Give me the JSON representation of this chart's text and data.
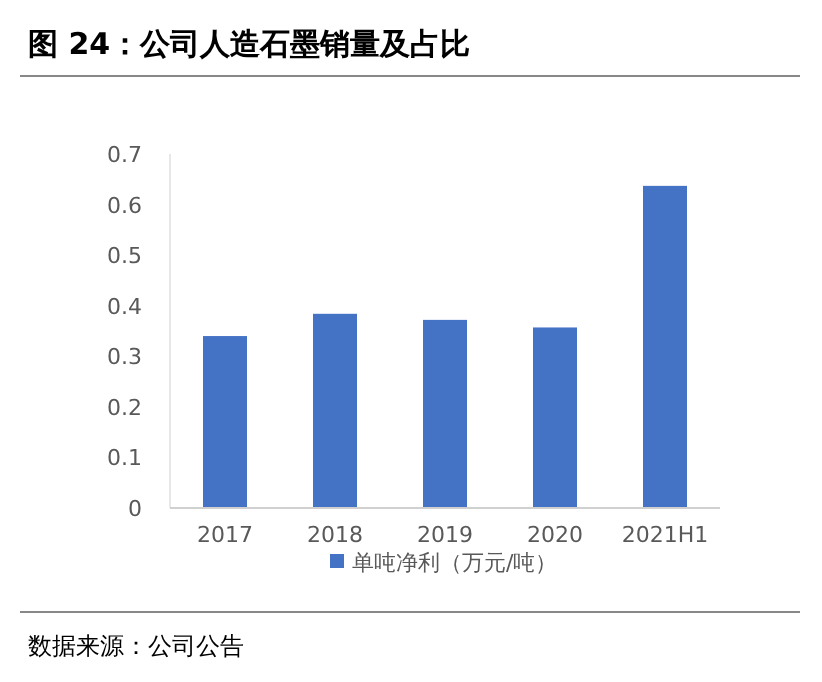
{
  "chart_data": {
    "type": "bar",
    "title": "图 24：公司人造石墨销量及占比",
    "categories": [
      "2017",
      "2018",
      "2019",
      "2020",
      "2021H1"
    ],
    "series": [
      {
        "name": "单吨净利（万元/吨）",
        "color": "#4472c4",
        "values": [
          0.34,
          0.384,
          0.372,
          0.357,
          0.637
        ]
      }
    ],
    "ylim": [
      0,
      0.7
    ],
    "yticks": [
      0,
      0.1,
      0.2,
      0.3,
      0.4,
      0.5,
      0.6,
      0.7
    ],
    "grid": false,
    "legend": "bottom",
    "annotations": [
      "数据来源：公司公告"
    ]
  }
}
